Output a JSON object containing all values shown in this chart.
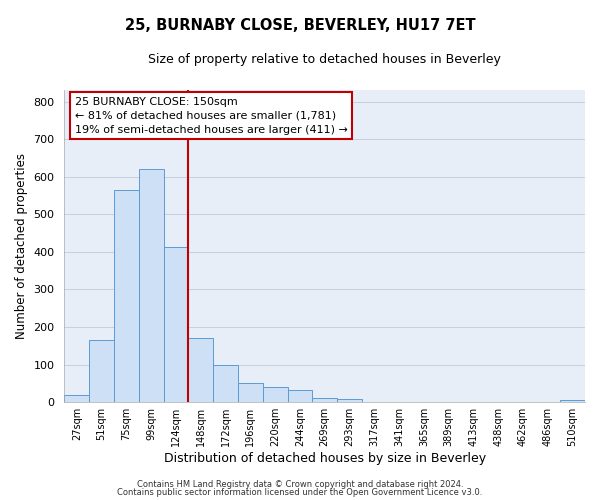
{
  "title": "25, BURNABY CLOSE, BEVERLEY, HU17 7ET",
  "subtitle": "Size of property relative to detached houses in Beverley",
  "xlabel": "Distribution of detached houses by size in Beverley",
  "ylabel": "Number of detached properties",
  "bin_labels": [
    "27sqm",
    "51sqm",
    "75sqm",
    "99sqm",
    "124sqm",
    "148sqm",
    "172sqm",
    "196sqm",
    "220sqm",
    "244sqm",
    "269sqm",
    "293sqm",
    "317sqm",
    "341sqm",
    "365sqm",
    "389sqm",
    "413sqm",
    "438sqm",
    "462sqm",
    "486sqm",
    "510sqm"
  ],
  "bar_heights": [
    18,
    165,
    565,
    620,
    413,
    170,
    100,
    50,
    40,
    33,
    12,
    8,
    1,
    1,
    1,
    1,
    0,
    0,
    0,
    0,
    5
  ],
  "bar_color": "#cde0f5",
  "bar_edge_color": "#5b9bd5",
  "vline_x_index": 5,
  "vline_color": "#c00000",
  "annotation_title": "25 BURNABY CLOSE: 150sqm",
  "annotation_line1": "← 81% of detached houses are smaller (1,781)",
  "annotation_line2": "19% of semi-detached houses are larger (411) →",
  "annotation_box_color": "#c00000",
  "ylim": [
    0,
    830
  ],
  "yticks": [
    0,
    100,
    200,
    300,
    400,
    500,
    600,
    700,
    800
  ],
  "footer1": "Contains HM Land Registry data © Crown copyright and database right 2024.",
  "footer2": "Contains public sector information licensed under the Open Government Licence v3.0.",
  "bg_color": "#ffffff",
  "plot_bg_color": "#e8eef8",
  "grid_color": "#c8d0e0"
}
